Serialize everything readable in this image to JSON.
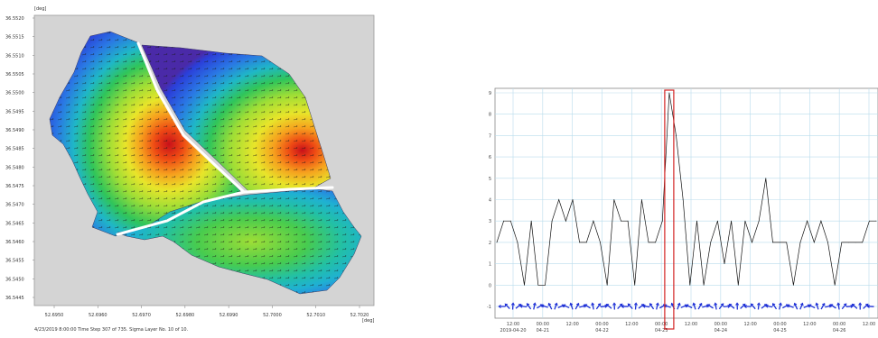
{
  "map": {
    "unit_top": "[deg]",
    "unit_right": "[deg]",
    "y_ticks": [
      "36.5520",
      "36.5515",
      "36.5510",
      "36.5505",
      "36.5500",
      "36.5495",
      "36.5490",
      "36.5485",
      "36.5480",
      "36.5475",
      "36.5470",
      "36.5465",
      "36.5460",
      "36.5455",
      "36.5450",
      "36.5445"
    ],
    "x_ticks": [
      "52.6950",
      "52.6960",
      "52.6970",
      "52.6980",
      "52.6990",
      "52.7000",
      "52.7010",
      "52.7020"
    ],
    "status": "4/23/2019 8:00:00  Time Step 307 of 735. Sigma Layer No. 10 of 10.",
    "colors": {
      "plot_bg": "#d4d4d4",
      "low": "#2b3fd9",
      "high": "#d81c12"
    }
  },
  "chart_data": {
    "type": "line",
    "title": "",
    "xlabel": "",
    "ylabel": "",
    "y_ticks": [
      "9",
      "8",
      "7",
      "6",
      "5",
      "4",
      "3",
      "2",
      "1",
      "0",
      "-1"
    ],
    "ylim": [
      -1,
      9
    ],
    "x_tick_labels": [
      [
        "12:00",
        "2019-04-20"
      ],
      [
        "00:00",
        "04-21"
      ],
      [
        "12:00",
        ""
      ],
      [
        "00:00",
        "04-22"
      ],
      [
        "12:00",
        ""
      ],
      [
        "00:00",
        "04-23"
      ],
      [
        "12:00",
        ""
      ],
      [
        "00:00",
        "04-24"
      ],
      [
        "12:00",
        ""
      ],
      [
        "00:00",
        "04-25"
      ],
      [
        "12:00",
        ""
      ],
      [
        "00:00",
        "04-26"
      ],
      [
        "12:00",
        ""
      ]
    ],
    "series": [
      {
        "values": [
          2,
          3,
          3,
          2,
          0,
          3,
          0,
          0,
          3,
          4,
          3,
          4,
          2,
          2,
          3,
          2,
          0,
          4,
          3,
          3,
          0,
          4,
          2,
          2,
          3,
          9,
          7,
          4,
          0,
          3,
          0,
          2,
          3,
          1,
          3,
          0,
          3,
          2,
          3,
          5,
          2,
          2,
          2,
          0,
          2,
          3,
          2,
          3,
          2,
          0,
          2,
          2,
          2,
          2,
          3,
          3
        ]
      }
    ],
    "highlight_index": 25,
    "colors": {
      "line": "#111111",
      "grid": "#b9dcec",
      "arrows": "#1d2fd6",
      "highlight": "#d22222"
    }
  }
}
